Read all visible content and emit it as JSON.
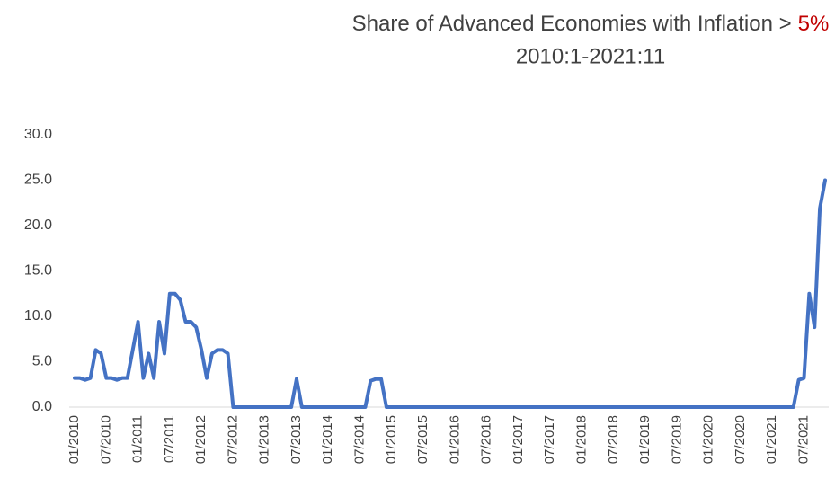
{
  "chart_data": {
    "type": "line",
    "title": "Share of Advanced Economies with Inflation >",
    "title_highlight": "5%",
    "title_highlight_color": "#c00000",
    "subtitle": "2010:1-2021:11",
    "color": "#4472c4",
    "grid": false,
    "ylim": [
      0,
      30
    ],
    "yticks": [
      {
        "value": 0,
        "label": "0.0"
      },
      {
        "value": 5,
        "label": "5.0"
      },
      {
        "value": 10,
        "label": "10.0"
      },
      {
        "value": 15,
        "label": "15.0"
      },
      {
        "value": 20,
        "label": "20.0"
      },
      {
        "value": 25,
        "label": "25.0"
      },
      {
        "value": 30,
        "label": "30.0"
      }
    ],
    "categories": [
      "01/2010",
      null,
      null,
      null,
      null,
      null,
      "07/2010",
      null,
      null,
      null,
      null,
      null,
      "01/2011",
      null,
      null,
      null,
      null,
      null,
      "07/2011",
      null,
      null,
      null,
      null,
      null,
      "01/2012",
      null,
      null,
      null,
      null,
      null,
      "07/2012",
      null,
      null,
      null,
      null,
      null,
      "01/2013",
      null,
      null,
      null,
      null,
      null,
      "07/2013",
      null,
      null,
      null,
      null,
      null,
      "01/2014",
      null,
      null,
      null,
      null,
      null,
      "07/2014",
      null,
      null,
      null,
      null,
      null,
      "01/2015",
      null,
      null,
      null,
      null,
      null,
      "07/2015",
      null,
      null,
      null,
      null,
      null,
      "01/2016",
      null,
      null,
      null,
      null,
      null,
      "07/2016",
      null,
      null,
      null,
      null,
      null,
      "01/2017",
      null,
      null,
      null,
      null,
      null,
      "07/2017",
      null,
      null,
      null,
      null,
      null,
      "01/2018",
      null,
      null,
      null,
      null,
      null,
      "07/2018",
      null,
      null,
      null,
      null,
      null,
      "01/2019",
      null,
      null,
      null,
      null,
      null,
      "07/2019",
      null,
      null,
      null,
      null,
      null,
      "01/2020",
      null,
      null,
      null,
      null,
      null,
      "07/2020",
      null,
      null,
      null,
      null,
      null,
      "01/2021",
      null,
      null,
      null,
      null,
      null,
      "07/2021",
      null,
      null,
      null,
      null
    ],
    "values": [
      3.2,
      3.2,
      3.0,
      3.2,
      6.3,
      5.9,
      3.2,
      3.2,
      3.0,
      3.2,
      3.2,
      6.3,
      9.4,
      3.2,
      5.9,
      3.2,
      9.4,
      5.9,
      12.5,
      12.5,
      11.8,
      9.4,
      9.4,
      8.8,
      6.3,
      3.2,
      5.9,
      6.3,
      6.3,
      5.9,
      0,
      0,
      0,
      0,
      0,
      0,
      0,
      0,
      0,
      0,
      0,
      0,
      3.1,
      0,
      0,
      0,
      0,
      0,
      0,
      0,
      0,
      0,
      0,
      0,
      0,
      0,
      2.9,
      3.1,
      3.1,
      0,
      0,
      0,
      0,
      0,
      0,
      0,
      0,
      0,
      0,
      0,
      0,
      0,
      0,
      0,
      0,
      0,
      0,
      0,
      0,
      0,
      0,
      0,
      0,
      0,
      0,
      0,
      0,
      0,
      0,
      0,
      0,
      0,
      0,
      0,
      0,
      0,
      0,
      0,
      0,
      0,
      0,
      0,
      0,
      0,
      0,
      0,
      0,
      0,
      0,
      0,
      0,
      0,
      0,
      0,
      0,
      0,
      0,
      0,
      0,
      0,
      0,
      0,
      0,
      0,
      0,
      0,
      0,
      0,
      0,
      0,
      0,
      0,
      0,
      0,
      0,
      0,
      0,
      3.0,
      3.2,
      12.5,
      8.8,
      21.9,
      25.0
    ]
  }
}
